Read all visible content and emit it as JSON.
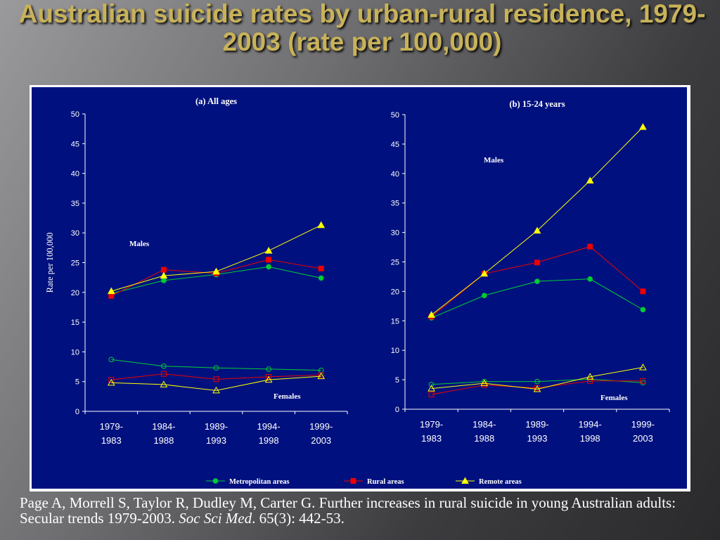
{
  "slide": {
    "title": "Australian suicide rates by urban-rural residence, 1979-2003 (rate per 100,000)",
    "citation": {
      "part1": "Page A, Morrell S, Taylor R, Dudley M, Carter G. Further increases in rural suicide in young Australian adults: Secular trends 1979-2003. ",
      "journal": "Soc Sci Med",
      "part2": ". 65(3): 442-53."
    }
  },
  "colors": {
    "background": "#00117f",
    "metropolitan": "#00cc33",
    "rural": "#ee0000",
    "remote": "#ffff00"
  },
  "legend": {
    "placement": "bottom",
    "items": [
      {
        "label": "Metropolitan areas",
        "marker": "circle",
        "color": "#00cc33"
      },
      {
        "label": "Rural areas",
        "marker": "square",
        "color": "#ee0000"
      },
      {
        "label": "Remote areas",
        "marker": "triangle",
        "color": "#ffff00"
      }
    ]
  },
  "chart_data": [
    {
      "type": "line",
      "title": "(a) All ages",
      "ylabel": "Rate per 100,000",
      "xlabel": "",
      "ylim": [
        0,
        50
      ],
      "yticks": [
        "0",
        "5",
        "10",
        "15",
        "20",
        "25",
        "30",
        "35",
        "40",
        "45",
        "50"
      ],
      "categories": [
        [
          "1979-",
          "1983"
        ],
        [
          "1984-",
          "1988"
        ],
        [
          "1989-",
          "1993"
        ],
        [
          "1994-",
          "1998"
        ],
        [
          "1999-",
          "2003"
        ]
      ],
      "annotations": [
        "Males",
        "Females"
      ],
      "series": [
        {
          "name": "Metropolitan areas",
          "sex": "Males",
          "marker": "circle",
          "filled": true,
          "values": [
            19.8,
            22.0,
            23.0,
            24.3,
            22.4
          ]
        },
        {
          "name": "Rural areas",
          "sex": "Males",
          "marker": "square",
          "filled": true,
          "values": [
            19.4,
            23.8,
            23.2,
            25.5,
            24.0
          ]
        },
        {
          "name": "Remote areas",
          "sex": "Males",
          "marker": "triangle",
          "filled": true,
          "values": [
            20.2,
            22.8,
            23.5,
            27.0,
            31.3
          ]
        },
        {
          "name": "Metropolitan areas",
          "sex": "Females",
          "marker": "circle",
          "filled": false,
          "values": [
            8.7,
            7.6,
            7.3,
            7.1,
            6.9
          ]
        },
        {
          "name": "Rural areas",
          "sex": "Females",
          "marker": "square",
          "filled": false,
          "values": [
            5.3,
            6.3,
            5.4,
            5.8,
            6.1
          ]
        },
        {
          "name": "Remote areas",
          "sex": "Females",
          "marker": "triangle",
          "filled": false,
          "values": [
            4.8,
            4.5,
            3.5,
            5.3,
            5.9
          ]
        }
      ]
    },
    {
      "type": "line",
      "title": "(b) 15-24 years",
      "ylabel": "",
      "xlabel": "",
      "ylim": [
        0,
        50
      ],
      "yticks": [
        "0",
        "5",
        "10",
        "15",
        "20",
        "25",
        "30",
        "35",
        "40",
        "45",
        "50"
      ],
      "categories": [
        [
          "1979-",
          "1983"
        ],
        [
          "1984-",
          "1988"
        ],
        [
          "1989-",
          "1993"
        ],
        [
          "1994-",
          "1998"
        ],
        [
          "1999-",
          "2003"
        ]
      ],
      "annotations": [
        "Males",
        "Females"
      ],
      "series": [
        {
          "name": "Metropolitan areas",
          "sex": "Males",
          "marker": "circle",
          "filled": true,
          "values": [
            15.5,
            19.3,
            21.7,
            22.1,
            16.9
          ]
        },
        {
          "name": "Rural areas",
          "sex": "Males",
          "marker": "square",
          "filled": true,
          "values": [
            15.7,
            23.0,
            24.9,
            27.6,
            20.0
          ]
        },
        {
          "name": "Remote areas",
          "sex": "Males",
          "marker": "triangle",
          "filled": true,
          "values": [
            16.0,
            23.0,
            30.3,
            38.8,
            47.9
          ]
        },
        {
          "name": "Metropolitan areas",
          "sex": "Females",
          "marker": "circle",
          "filled": false,
          "values": [
            4.2,
            4.7,
            4.7,
            5.1,
            4.5
          ]
        },
        {
          "name": "Rural areas",
          "sex": "Females",
          "marker": "square",
          "filled": false,
          "values": [
            2.5,
            4.1,
            3.6,
            4.8,
            4.8
          ]
        },
        {
          "name": "Remote areas",
          "sex": "Females",
          "marker": "triangle",
          "filled": false,
          "values": [
            3.5,
            4.4,
            3.4,
            5.5,
            7.1
          ]
        }
      ]
    }
  ]
}
